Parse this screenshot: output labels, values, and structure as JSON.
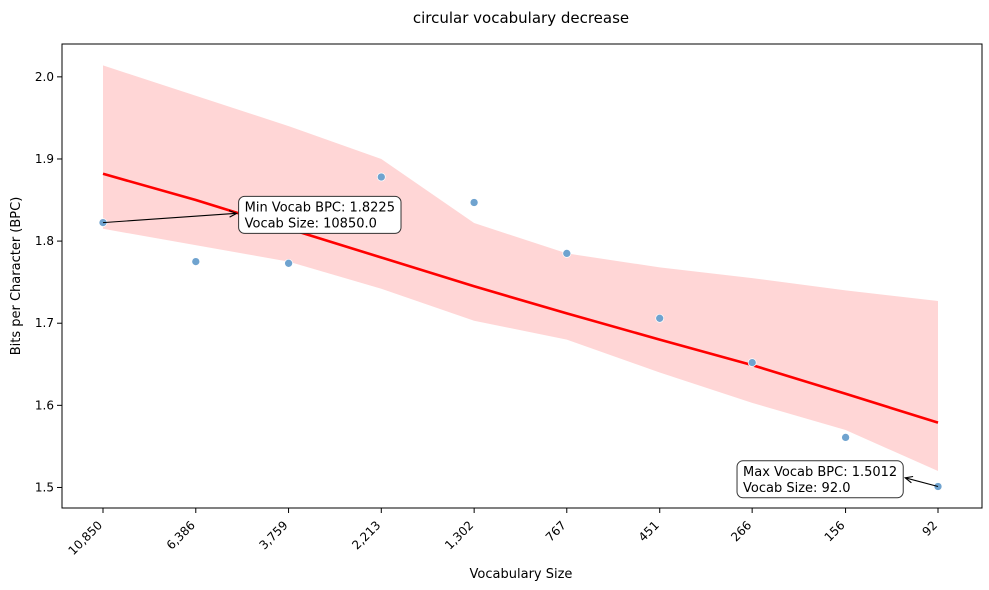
{
  "chart_data": {
    "type": "scatter",
    "title": "circular vocabulary decrease",
    "xlabel": "Vocabulary Size",
    "ylabel": "Bits per Character (BPC)",
    "x_scale": "log",
    "x_reversed": true,
    "x_ticks": [
      10850,
      6386,
      3759,
      2213,
      1302,
      767,
      451,
      266,
      156,
      92
    ],
    "x_tick_labels": [
      "10,850",
      "6,386",
      "3,759",
      "2,213",
      "1,302",
      "767",
      "451",
      "266",
      "156",
      "92"
    ],
    "ylim": [
      1.475,
      2.04
    ],
    "y_ticks": [
      1.5,
      1.6,
      1.7,
      1.8,
      1.9,
      2.0
    ],
    "y_tick_labels": [
      "1.5",
      "1.6",
      "1.7",
      "1.8",
      "1.9",
      "2.0"
    ],
    "grid": false,
    "points": {
      "color": "#6fa3cf",
      "x": [
        10850,
        6386,
        3759,
        2213,
        1302,
        767,
        451,
        266,
        156,
        92
      ],
      "y": [
        1.8225,
        1.775,
        1.773,
        1.878,
        1.847,
        1.785,
        1.706,
        1.652,
        1.561,
        1.5012
      ]
    },
    "fit_line": {
      "color": "#ff0000",
      "x": [
        10850,
        6386,
        3759,
        2213,
        1302,
        767,
        451,
        266,
        156,
        92
      ],
      "y": [
        1.882,
        1.85,
        1.815,
        1.78,
        1.745,
        1.712,
        1.68,
        1.649,
        1.614,
        1.579
      ]
    },
    "confidence_band": {
      "color": "#ffd6d6",
      "x": [
        10850,
        3759,
        2213,
        1302,
        767,
        451,
        266,
        156,
        92
      ],
      "upper": [
        2.014,
        1.94,
        1.9,
        1.822,
        1.785,
        1.768,
        1.755,
        1.74,
        1.727
      ],
      "lower": [
        1.815,
        1.775,
        1.742,
        1.703,
        1.68,
        1.64,
        1.603,
        1.57,
        1.52
      ]
    },
    "annotations": [
      {
        "line1": "Min Vocab BPC: 1.8225",
        "line2": "Vocab Size: 10850.0",
        "point_x": 10850,
        "point_y": 1.8225,
        "box_x": 5000,
        "box_y": 1.835
      },
      {
        "line1": "Max Vocab BPC: 1.5012",
        "line2": "Vocab Size: 92.0",
        "point_x": 92,
        "point_y": 1.5012,
        "box_x": 290,
        "box_y": 1.513
      }
    ]
  }
}
